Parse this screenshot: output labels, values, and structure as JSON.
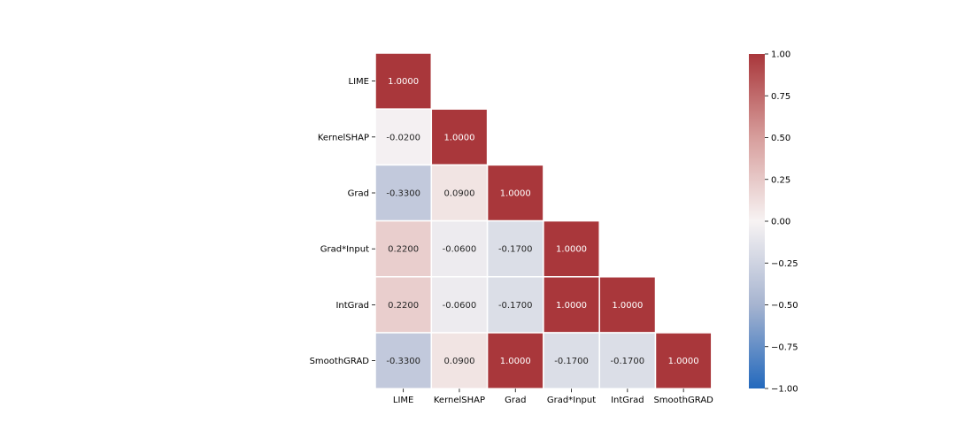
{
  "chart_data": {
    "type": "heatmap",
    "title": "",
    "xlabel": "",
    "ylabel": "",
    "x_categories": [
      "LIME",
      "KernelSHAP",
      "Grad",
      "Grad*Input",
      "IntGrad",
      "SmoothGRAD"
    ],
    "y_categories": [
      "LIME",
      "KernelSHAP",
      "Grad",
      "Grad*Input",
      "IntGrad",
      "SmoothGRAD"
    ],
    "mask": "upper-triangle",
    "values": [
      [
        1.0,
        null,
        null,
        null,
        null,
        null
      ],
      [
        -0.02,
        1.0,
        null,
        null,
        null,
        null
      ],
      [
        -0.33,
        0.09,
        1.0,
        null,
        null,
        null
      ],
      [
        0.22,
        -0.06,
        -0.17,
        1.0,
        null,
        null
      ],
      [
        0.22,
        -0.06,
        -0.17,
        1.0,
        1.0,
        null
      ],
      [
        -0.33,
        0.09,
        1.0,
        -0.17,
        -0.17,
        1.0
      ]
    ],
    "value_labels": [
      [
        "1.0000",
        null,
        null,
        null,
        null,
        null
      ],
      [
        "-0.0200",
        "1.0000",
        null,
        null,
        null,
        null
      ],
      [
        "-0.3300",
        "0.0900",
        "1.0000",
        null,
        null,
        null
      ],
      [
        "0.2200",
        "-0.0600",
        "-0.1700",
        "1.0000",
        null,
        null
      ],
      [
        "0.2200",
        "-0.0600",
        "-0.1700",
        "1.0000",
        "1.0000",
        null
      ],
      [
        "-0.3300",
        "0.0900",
        "1.0000",
        "-0.1700",
        "-0.1700",
        "1.0000"
      ]
    ],
    "colormap": {
      "name": "vlag",
      "low_color": "#2369bd",
      "mid_color": "#f7f3f3",
      "high_color": "#a9373b",
      "vmin": -1.0,
      "vmax": 1.0
    },
    "colorbar": {
      "ticks": [
        1.0,
        0.75,
        0.5,
        0.25,
        0.0,
        -0.25,
        -0.5,
        -0.75,
        -1.0
      ],
      "tick_labels": [
        "1.00",
        "0.75",
        "0.50",
        "0.25",
        "0.00",
        "−0.25",
        "−0.50",
        "−0.75",
        "−1.00"
      ]
    },
    "grid": false,
    "legend": "colorbar-right"
  }
}
